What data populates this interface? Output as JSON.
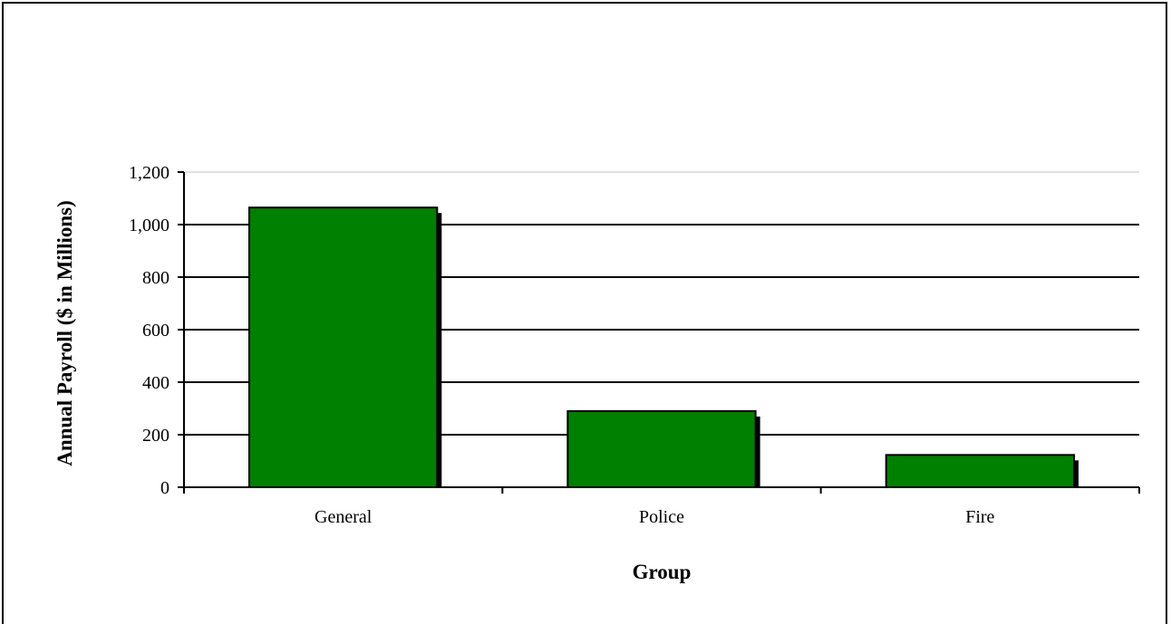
{
  "chart_data": {
    "type": "bar",
    "categories": [
      "General",
      "Police",
      "Fire"
    ],
    "values": [
      1065,
      290,
      123
    ],
    "title": "",
    "xlabel": "Group",
    "ylabel": "Annual Payroll ($ in Millions)",
    "ylim": [
      0,
      1200
    ],
    "yticks": [
      0,
      200,
      400,
      600,
      800,
      1000,
      1200
    ],
    "ytick_labels": [
      "0",
      "200",
      "400",
      "600",
      "800",
      "1,000",
      "1,200"
    ],
    "grid": true,
    "legend": "none",
    "colors": {
      "bar_fill": "#008000",
      "bar_stroke": "#000000",
      "bar_shadow": "#000000",
      "grid": "#000000",
      "top_grid": "#c0c0c0",
      "axis": "#000000"
    }
  }
}
